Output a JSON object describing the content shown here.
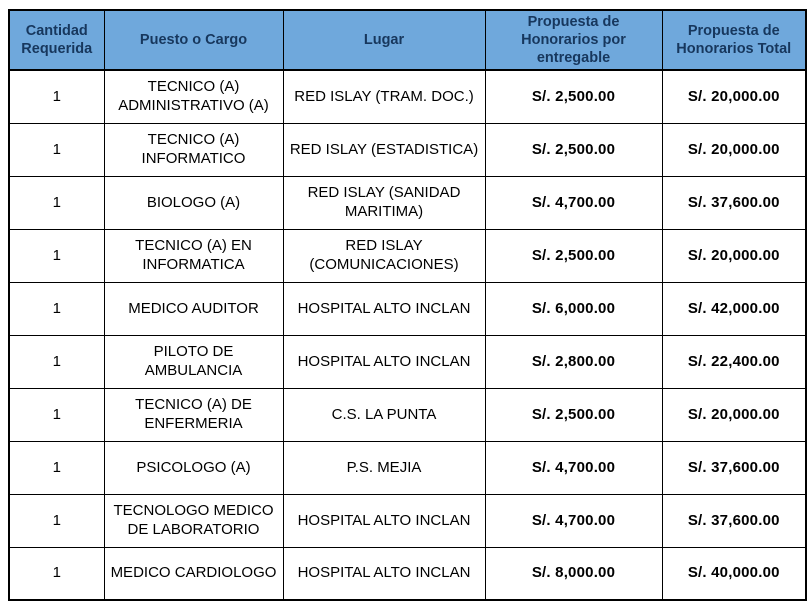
{
  "colors": {
    "header_bg": "#6FA8DC",
    "header_text": "#17375D",
    "grid_border": "#000000",
    "body_text": "#000000"
  },
  "table": {
    "headers": [
      "Cantidad Requerida",
      "Puesto o Cargo",
      "Lugar",
      "Propuesta de Honorarios por entregable",
      "Propuesta de Honorarios Total"
    ],
    "rows": [
      {
        "cantidad": "1",
        "puesto": "TECNICO (A) ADMINISTRATIVO (A)",
        "lugar": "RED ISLAY (TRAM. DOC.)",
        "honorarios_entregable": "S/. 2,500.00",
        "honorarios_total": "S/. 20,000.00"
      },
      {
        "cantidad": "1",
        "puesto": "TECNICO (A) INFORMATICO",
        "lugar": "RED ISLAY (ESTADISTICA)",
        "honorarios_entregable": "S/. 2,500.00",
        "honorarios_total": "S/. 20,000.00"
      },
      {
        "cantidad": "1",
        "puesto": "BIOLOGO (A)",
        "lugar": "RED ISLAY (SANIDAD MARITIMA)",
        "honorarios_entregable": "S/. 4,700.00",
        "honorarios_total": "S/. 37,600.00"
      },
      {
        "cantidad": "1",
        "puesto": "TECNICO (A) EN INFORMATICA",
        "lugar": "RED ISLAY (COMUNICACIONES)",
        "honorarios_entregable": "S/. 2,500.00",
        "honorarios_total": "S/. 20,000.00"
      },
      {
        "cantidad": "1",
        "puesto": "MEDICO AUDITOR",
        "lugar": "HOSPITAL ALTO INCLAN",
        "honorarios_entregable": "S/. 6,000.00",
        "honorarios_total": "S/. 42,000.00"
      },
      {
        "cantidad": "1",
        "puesto": "PILOTO DE AMBULANCIA",
        "lugar": "HOSPITAL ALTO INCLAN",
        "honorarios_entregable": "S/. 2,800.00",
        "honorarios_total": "S/. 22,400.00"
      },
      {
        "cantidad": "1",
        "puesto": "TECNICO (A) DE ENFERMERIA",
        "lugar": "C.S. LA PUNTA",
        "honorarios_entregable": "S/. 2,500.00",
        "honorarios_total": "S/. 20,000.00"
      },
      {
        "cantidad": "1",
        "puesto": "PSICOLOGO (A)",
        "lugar": "P.S. MEJIA",
        "honorarios_entregable": "S/. 4,700.00",
        "honorarios_total": "S/. 37,600.00"
      },
      {
        "cantidad": "1",
        "puesto": "TECNOLOGO MEDICO DE LABORATORIO",
        "lugar": "HOSPITAL ALTO INCLAN",
        "honorarios_entregable": "S/. 4,700.00",
        "honorarios_total": "S/. 37,600.00"
      },
      {
        "cantidad": "1",
        "puesto": "MEDICO CARDIOLOGO",
        "lugar": "HOSPITAL ALTO INCLAN",
        "honorarios_entregable": "S/. 8,000.00",
        "honorarios_total": "S/. 40,000.00"
      }
    ]
  }
}
